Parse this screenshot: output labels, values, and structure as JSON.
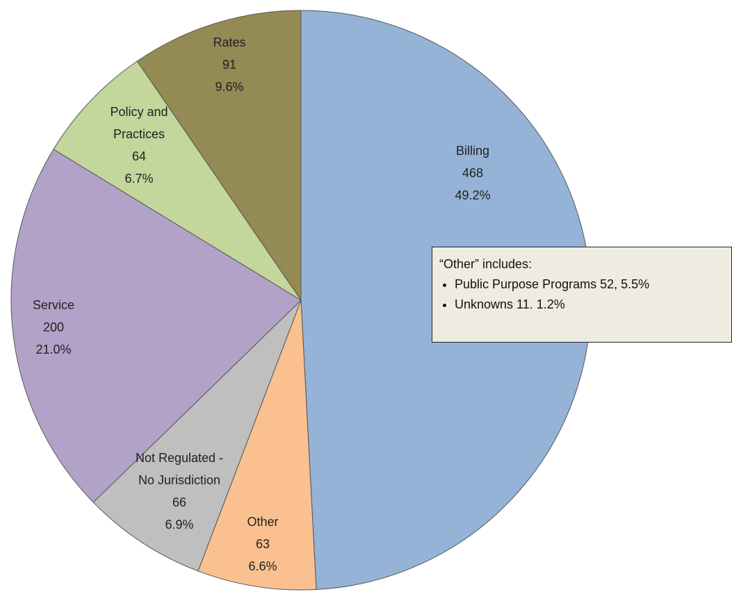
{
  "chart_data": {
    "type": "pie",
    "categories": [
      "Billing",
      "Other",
      "Not Regulated -\nNo Jurisdiction",
      "Service",
      "Policy and\nPractices",
      "Rates"
    ],
    "values": [
      468,
      63,
      66,
      200,
      64,
      91
    ],
    "percent_labels": [
      "49.2%",
      "6.6%",
      "6.9%",
      "21.0%",
      "6.7%",
      "9.6%"
    ],
    "colors": [
      "#95b3d7",
      "#fac090",
      "#bfbfbf",
      "#b3a2c7",
      "#c3d69b",
      "#948a54"
    ],
    "annotation": {
      "title": "“Other” includes:",
      "items": [
        "Public Purpose Programs 52, 5.5%",
        "Unknowns 11. 1.2%"
      ]
    }
  }
}
